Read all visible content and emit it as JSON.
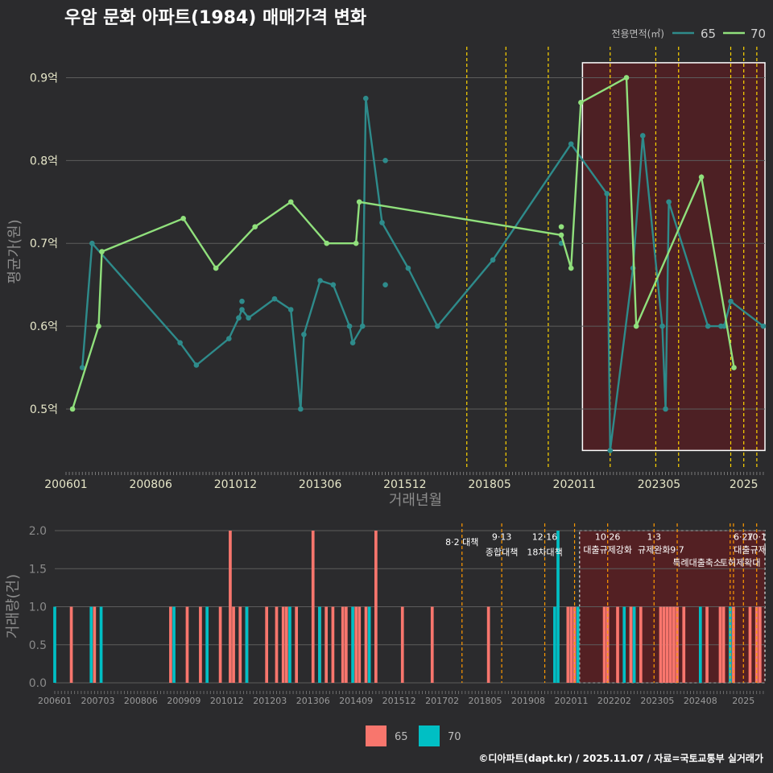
{
  "title": "우암 문화 아파트(1984) 매매가격 변화",
  "footer": "©디아파트(dapt.kr) / 2025.11.07 / 자료=국토교통부 실거래가",
  "colors": {
    "s65_line": "#2e8b8b",
    "s70_line": "#90e07c",
    "bar65": "#f8766d",
    "bar70": "#00bfc4",
    "policy": "#ffd400",
    "policy_bottom": "#ff9900",
    "highlight_fill": "#5a1e22",
    "grid": "#5c5c5c"
  },
  "chart_data": [
    {
      "type": "line",
      "name": "price",
      "xlabel": "거래년월",
      "ylabel": "평균가(원)",
      "ylim": [
        0.43,
        0.95
      ],
      "yticks": [
        0.5,
        0.6,
        0.7,
        0.8,
        0.9
      ],
      "ytick_labels": [
        "0.5억",
        "0.6억",
        "0.7억",
        "0.8억",
        "0.9억"
      ],
      "xticks": [
        0,
        26,
        52,
        78,
        104,
        130,
        156,
        182,
        208
      ],
      "xtick_labels": [
        "200601",
        "200806",
        "201012",
        "201306",
        "201512",
        "201805",
        "202011",
        "202305",
        "2025"
      ],
      "legend_title": "전용면적(㎡)",
      "legend": [
        "65",
        "70"
      ],
      "series": [
        {
          "name": "65",
          "points": [
            [
              5,
              0.55
            ],
            [
              8,
              0.7
            ],
            [
              35,
              0.58
            ],
            [
              40,
              0.553
            ],
            [
              50,
              0.585
            ],
            [
              53,
              0.61
            ],
            [
              54,
              0.62
            ],
            [
              56,
              0.61
            ],
            [
              64,
              0.633
            ],
            [
              69,
              0.62
            ],
            [
              72,
              0.5
            ],
            [
              73,
              0.59
            ],
            [
              78,
              0.655
            ],
            [
              82,
              0.65
            ],
            [
              87,
              0.6
            ],
            [
              88,
              0.58
            ],
            [
              91,
              0.6
            ],
            [
              92,
              0.875
            ],
            [
              97,
              0.725
            ],
            [
              105,
              0.67
            ],
            [
              114,
              0.6
            ],
            [
              131,
              0.68
            ],
            [
              155,
              0.82
            ],
            [
              166,
              0.76
            ],
            [
              167,
              0.45
            ],
            [
              174,
              0.67
            ],
            [
              177,
              0.83
            ],
            [
              183,
              0.6
            ],
            [
              184,
              0.5
            ],
            [
              185,
              0.75
            ],
            [
              197,
              0.6
            ],
            [
              201,
              0.6
            ],
            [
              202,
              0.6
            ],
            [
              204,
              0.63
            ],
            [
              214,
              0.6
            ]
          ],
          "extra_points": [
            [
              53,
              0.61
            ],
            [
              54,
              0.63
            ],
            [
              98,
              0.8
            ],
            [
              98,
              0.65
            ],
            [
              152,
              0.7
            ]
          ]
        },
        {
          "name": "70",
          "points": [
            [
              2,
              0.5
            ],
            [
              10,
              0.6
            ],
            [
              11,
              0.69
            ],
            [
              36,
              0.73
            ],
            [
              46,
              0.67
            ],
            [
              58,
              0.72
            ],
            [
              69,
              0.75
            ],
            [
              80,
              0.7
            ],
            [
              89,
              0.7
            ],
            [
              90,
              0.75
            ],
            [
              152,
              0.71
            ],
            [
              155,
              0.67
            ],
            [
              158,
              0.87
            ],
            [
              172,
              0.9
            ],
            [
              175,
              0.6
            ],
            [
              195,
              0.78
            ],
            [
              205,
              0.55
            ]
          ],
          "extra_points": [
            [
              152,
              0.72
            ]
          ]
        }
      ],
      "policy_x": [
        123,
        135,
        148,
        167,
        181,
        188,
        204,
        208,
        212
      ]
    },
    {
      "type": "bar",
      "name": "volume",
      "xlabel": "",
      "ylabel": "거래량(건)",
      "ylim": [
        0,
        2
      ],
      "yticks": [
        0,
        0.5,
        1,
        1.5,
        2
      ],
      "ytick_labels": [
        "0.0",
        "0.5",
        "1.0",
        "1.5",
        "2.0"
      ],
      "xticks": [
        0,
        13,
        26,
        39,
        52,
        65,
        78,
        91,
        104,
        117,
        130,
        143,
        156,
        169,
        182,
        195,
        208
      ],
      "xtick_labels": [
        "200601",
        "200703",
        "200806",
        "200909",
        "201012",
        "201203",
        "201306",
        "201409",
        "201512",
        "201702",
        "201805",
        "201908",
        "202011",
        "202202",
        "202305",
        "202408",
        "2025"
      ],
      "legend": [
        "65",
        "70"
      ],
      "series": [
        {
          "name": "65",
          "x": [
            5,
            12,
            35,
            40,
            44,
            50,
            53,
            54,
            56,
            58,
            64,
            67,
            69,
            70,
            73,
            78,
            80,
            82,
            84,
            87,
            88,
            91,
            92,
            94,
            97,
            105,
            114,
            131,
            155,
            156,
            157,
            166,
            167,
            170,
            174,
            175,
            177,
            183,
            184,
            185,
            186,
            187,
            188,
            190,
            197,
            201,
            202,
            204,
            205,
            210,
            212,
            213
          ],
          "values": [
            1,
            1,
            1,
            1,
            1,
            1,
            2,
            1,
            1,
            1,
            1,
            1,
            1,
            1,
            1,
            2,
            1,
            1,
            1,
            1,
            1,
            1,
            1,
            1,
            2,
            1,
            1,
            1,
            1,
            1,
            1,
            1,
            1,
            1,
            1,
            1,
            1,
            1,
            1,
            1,
            1,
            1,
            1,
            1,
            1,
            1,
            1,
            1,
            1,
            1,
            1,
            1
          ]
        },
        {
          "name": "70",
          "x": [
            0,
            11,
            14,
            36,
            46,
            58,
            71,
            80,
            90,
            95,
            151,
            152,
            158,
            172,
            175,
            195,
            204
          ],
          "values": [
            1,
            1,
            1,
            1,
            1,
            1,
            1,
            1,
            1,
            1,
            1,
            2,
            1,
            1,
            1,
            1,
            1
          ]
        }
      ],
      "policy_x": [
        123,
        135,
        148,
        157,
        167,
        181,
        188,
        204,
        205,
        208,
        212
      ],
      "annotations": [
        {
          "x": 123,
          "y": 1.85,
          "text": "8·2 대책"
        },
        {
          "x": 135,
          "y": 1.92,
          "text": "9·13"
        },
        {
          "x": 135,
          "y": 1.72,
          "text": "종합대책"
        },
        {
          "x": 148,
          "y": 1.92,
          "text": "12·16"
        },
        {
          "x": 148,
          "y": 1.72,
          "text": "18차대책"
        },
        {
          "x": 167,
          "y": 1.92,
          "text": "10·26"
        },
        {
          "x": 167,
          "y": 1.75,
          "text": "대출규제강화"
        },
        {
          "x": 181,
          "y": 1.92,
          "text": "1·3"
        },
        {
          "x": 181,
          "y": 1.75,
          "text": "규제완화"
        },
        {
          "x": 188,
          "y": 1.75,
          "text": "9·7"
        },
        {
          "x": 194,
          "y": 1.58,
          "text": "특례대출축소"
        },
        {
          "x": 208,
          "y": 1.92,
          "text": "6·27"
        },
        {
          "x": 212,
          "y": 1.92,
          "text": "10·1"
        },
        {
          "x": 210,
          "y": 1.75,
          "text": "대출규제"
        },
        {
          "x": 207,
          "y": 1.58,
          "text": "토허제확대"
        }
      ]
    }
  ]
}
